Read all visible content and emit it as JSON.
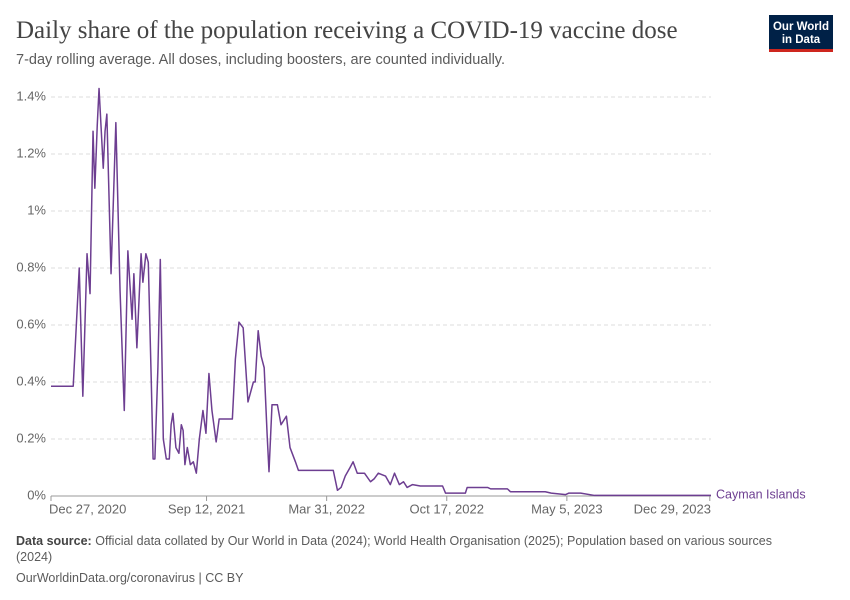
{
  "logo": [
    "Our World",
    "in Data"
  ],
  "chart_data": {
    "type": "line",
    "title": "Daily share of the population receiving a COVID-19 vaccine dose",
    "subtitle": "7-day rolling average. All doses, including boosters, are counted individually.",
    "source_label": "Data source:",
    "source": "Official data collated by Our World in Data (2024); World Health Organisation (2025); Population based on various sources (2024)",
    "note": "OurWorldinData.org/coronavirus | CC BY",
    "grid": true,
    "xlim": [
      "2020-12-27",
      "2023-12-31"
    ],
    "xticks": [
      {
        "value": "2020-12-27",
        "label": "Dec 27, 2020"
      },
      {
        "value": "2021-09-12",
        "label": "Sep 12, 2021"
      },
      {
        "value": "2022-03-31",
        "label": "Mar 31, 2022"
      },
      {
        "value": "2022-10-17",
        "label": "Oct 17, 2022"
      },
      {
        "value": "2023-05-05",
        "label": "May 5, 2023"
      },
      {
        "value": "2023-12-29",
        "label": "Dec 29, 2023"
      }
    ],
    "ylim": [
      0,
      1.4
    ],
    "yticks": [
      {
        "value": 0,
        "label": "0%"
      },
      {
        "value": 0.2,
        "label": "0.2%"
      },
      {
        "value": 0.4,
        "label": "0.4%"
      },
      {
        "value": 0.6,
        "label": "0.6%"
      },
      {
        "value": 0.8,
        "label": "0.8%"
      },
      {
        "value": 1,
        "label": "1%"
      },
      {
        "value": 1.2,
        "label": "1.2%"
      },
      {
        "value": 1.4,
        "label": "1.4%"
      }
    ],
    "x": [
      "2020-12-27",
      "2021-02-02",
      "2021-02-12",
      "2021-02-18",
      "2021-02-25",
      "2021-03-02",
      "2021-03-07",
      "2021-03-10",
      "2021-03-14",
      "2021-03-17",
      "2021-03-24",
      "2021-03-27",
      "2021-03-30",
      "2021-04-06",
      "2021-04-14",
      "2021-04-21",
      "2021-04-28",
      "2021-05-04",
      "2021-05-11",
      "2021-05-14",
      "2021-05-19",
      "2021-05-26",
      "2021-05-29",
      "2021-06-03",
      "2021-06-07",
      "2021-06-12",
      "2021-06-15",
      "2021-06-18",
      "2021-06-23",
      "2021-06-27",
      "2021-07-02",
      "2021-07-07",
      "2021-07-12",
      "2021-07-15",
      "2021-07-18",
      "2021-07-23",
      "2021-07-28",
      "2021-08-01",
      "2021-08-04",
      "2021-08-07",
      "2021-08-11",
      "2021-08-16",
      "2021-08-21",
      "2021-08-26",
      "2021-08-31",
      "2021-09-06",
      "2021-09-11",
      "2021-09-16",
      "2021-09-21",
      "2021-09-28",
      "2021-10-03",
      "2021-10-13",
      "2021-10-25",
      "2021-10-30",
      "2021-11-05",
      "2021-11-12",
      "2021-11-20",
      "2021-11-29",
      "2021-12-02",
      "2021-12-07",
      "2021-12-12",
      "2021-12-17",
      "2021-12-22",
      "2021-12-25",
      "2021-12-30",
      "2022-01-08",
      "2022-01-14",
      "2022-01-23",
      "2022-01-29",
      "2022-02-07",
      "2022-02-12",
      "2022-02-23",
      "2022-03-20",
      "2022-04-11",
      "2022-04-18",
      "2022-04-24",
      "2022-05-01",
      "2022-05-09",
      "2022-05-14",
      "2022-05-21",
      "2022-06-02",
      "2022-06-12",
      "2022-06-18",
      "2022-06-25",
      "2022-07-07",
      "2022-07-15",
      "2022-07-22",
      "2022-07-30",
      "2022-08-06",
      "2022-08-12",
      "2022-08-21",
      "2022-09-03",
      "2022-10-10",
      "2022-10-15",
      "2022-11-17",
      "2022-11-20",
      "2022-12-24",
      "2022-12-29",
      "2023-01-26",
      "2023-01-31",
      "2023-03-30",
      "2023-04-09",
      "2023-05-03",
      "2023-05-08",
      "2023-05-28",
      "2023-06-20",
      "2023-12-31"
    ],
    "series": [
      {
        "name": "Cayman Islands",
        "color": "#6d3e91",
        "values": [
          0.385,
          0.385,
          0.8,
          0.35,
          0.85,
          0.71,
          1.28,
          1.08,
          1.3,
          1.43,
          1.15,
          1.28,
          1.34,
          0.78,
          1.31,
          0.72,
          0.3,
          0.86,
          0.62,
          0.78,
          0.52,
          0.85,
          0.75,
          0.85,
          0.82,
          0.4,
          0.13,
          0.13,
          0.45,
          0.83,
          0.2,
          0.13,
          0.13,
          0.25,
          0.29,
          0.17,
          0.15,
          0.25,
          0.23,
          0.11,
          0.17,
          0.11,
          0.12,
          0.08,
          0.2,
          0.3,
          0.22,
          0.43,
          0.3,
          0.19,
          0.27,
          0.27,
          0.27,
          0.48,
          0.61,
          0.59,
          0.33,
          0.4,
          0.4,
          0.58,
          0.49,
          0.45,
          0.21,
          0.085,
          0.32,
          0.32,
          0.25,
          0.28,
          0.17,
          0.12,
          0.09,
          0.09,
          0.09,
          0.09,
          0.02,
          0.03,
          0.07,
          0.1,
          0.12,
          0.08,
          0.08,
          0.05,
          0.06,
          0.08,
          0.07,
          0.04,
          0.08,
          0.04,
          0.05,
          0.03,
          0.04,
          0.035,
          0.035,
          0.01,
          0.01,
          0.03,
          0.03,
          0.025,
          0.025,
          0.015,
          0.015,
          0.01,
          0.005,
          0.01,
          0.01,
          0.002,
          0.002
        ]
      }
    ]
  }
}
